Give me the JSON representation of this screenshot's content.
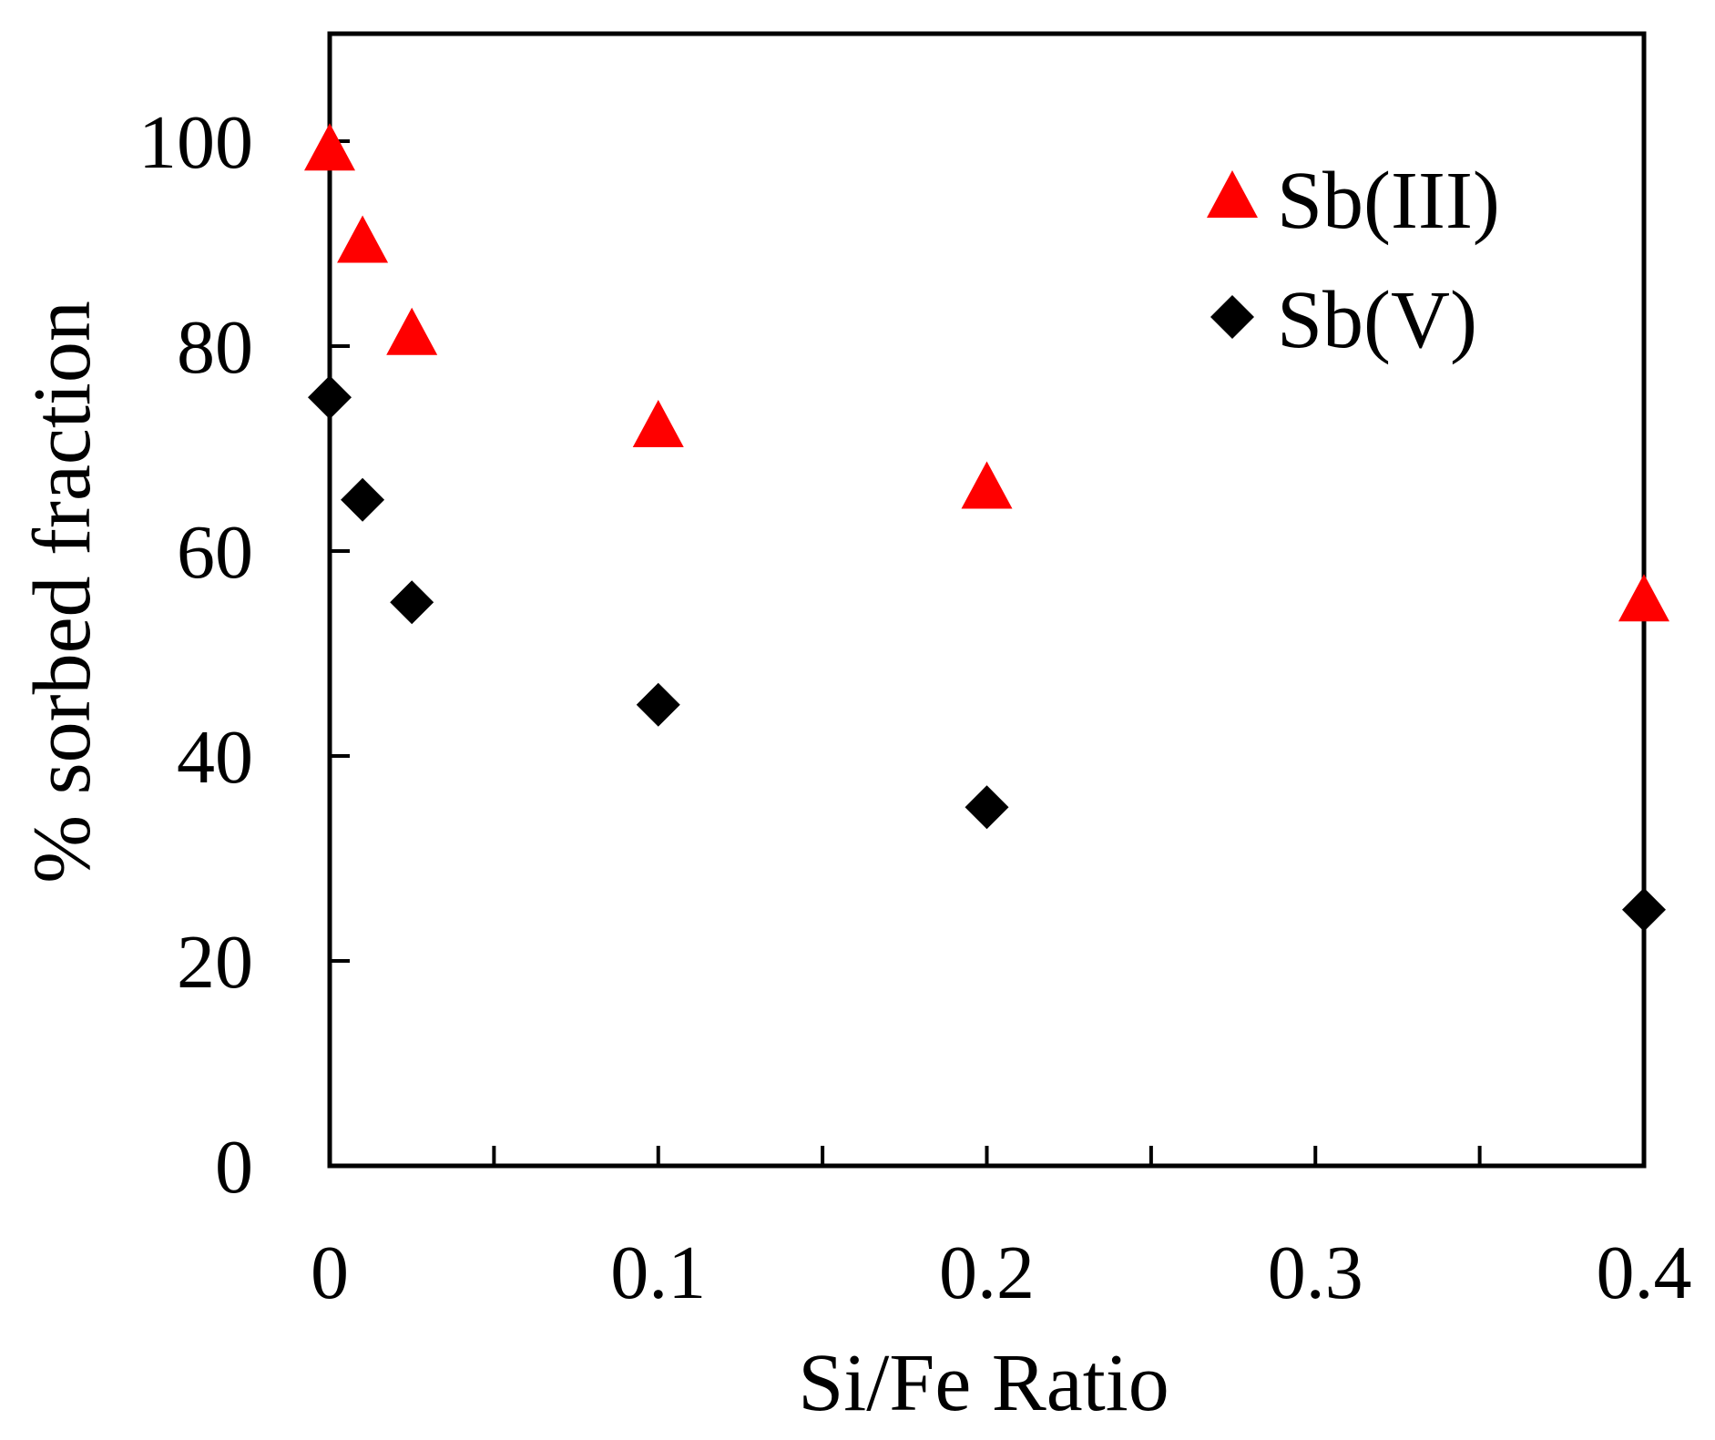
{
  "chart_data": {
    "type": "scatter",
    "title": "",
    "xlabel": "Si/Fe Ratio",
    "ylabel": "% sorbed fraction",
    "xlim": [
      0,
      0.4
    ],
    "ylim": [
      0,
      110
    ],
    "x_ticks": [
      0,
      0.1,
      0.2,
      0.3,
      0.4
    ],
    "x_tick_labels": [
      "0",
      "0.1",
      "0.2",
      "0.3",
      "0.4"
    ],
    "x_minor_ticks": [
      0.05,
      0.15,
      0.25,
      0.35
    ],
    "y_ticks": [
      0,
      20,
      40,
      60,
      80,
      100
    ],
    "y_tick_labels": [
      "0",
      "20",
      "40",
      "60",
      "80",
      "100"
    ],
    "grid": false,
    "legend_position": "top-right",
    "series": [
      {
        "name": "Sb(III)",
        "marker": "triangle",
        "color": "#ff0000",
        "points": [
          {
            "x": 0.0,
            "y": 99
          },
          {
            "x": 0.01,
            "y": 90
          },
          {
            "x": 0.025,
            "y": 81
          },
          {
            "x": 0.1,
            "y": 72
          },
          {
            "x": 0.2,
            "y": 66
          },
          {
            "x": 0.4,
            "y": 55
          }
        ]
      },
      {
        "name": "Sb(V)",
        "marker": "diamond",
        "color": "#000000",
        "points": [
          {
            "x": 0.0,
            "y": 75
          },
          {
            "x": 0.01,
            "y": 65
          },
          {
            "x": 0.025,
            "y": 55
          },
          {
            "x": 0.1,
            "y": 45
          },
          {
            "x": 0.2,
            "y": 35
          },
          {
            "x": 0.4,
            "y": 25
          }
        ]
      }
    ]
  }
}
